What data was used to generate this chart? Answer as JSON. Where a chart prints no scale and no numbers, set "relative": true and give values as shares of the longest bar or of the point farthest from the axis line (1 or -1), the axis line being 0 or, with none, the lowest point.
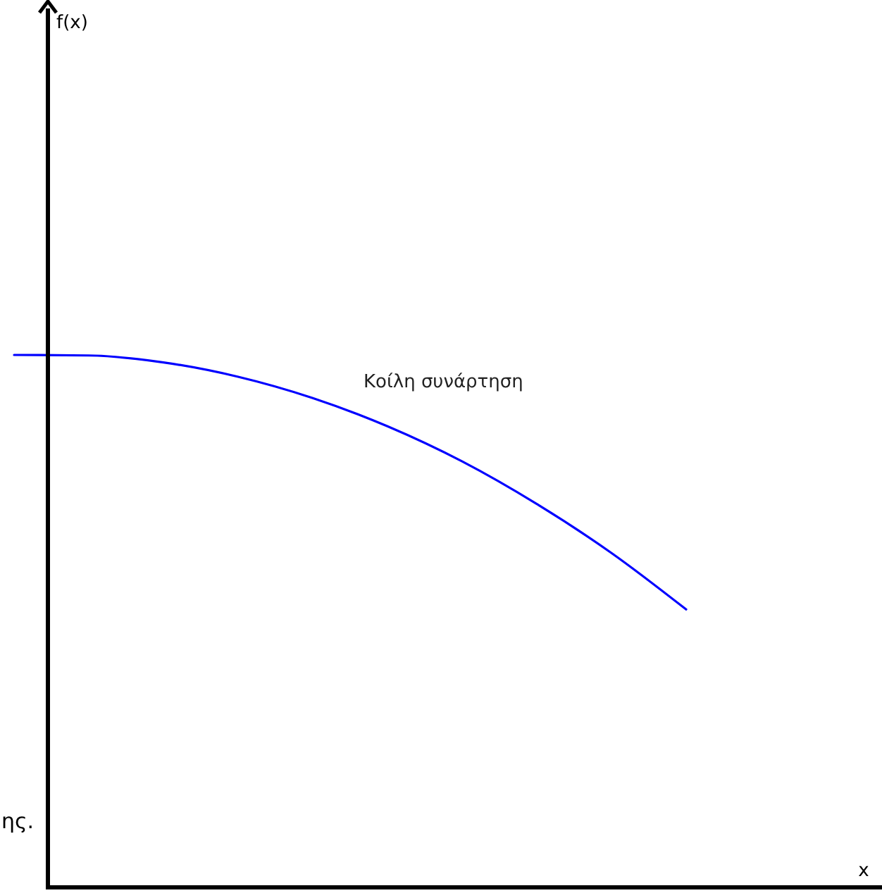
{
  "chart_data": {
    "type": "line",
    "relative": true,
    "annotations": [
      "ης.",
      "f(x)",
      "x"
    ],
    "categories": [
      null,
      null,
      null,
      null,
      null,
      null,
      null,
      null,
      null,
      null
    ],
    "series": [
      {
        "name": "Κοίλη συνάρτηση",
        "color": "#0000ff",
        "values": [
          1,
          0.999,
          0.986,
          0.959,
          0.919,
          0.866,
          0.8,
          0.72,
          0.628,
          0.522
        ]
      }
    ],
    "grid": false,
    "marker": "none",
    "line_style": "solid"
  }
}
